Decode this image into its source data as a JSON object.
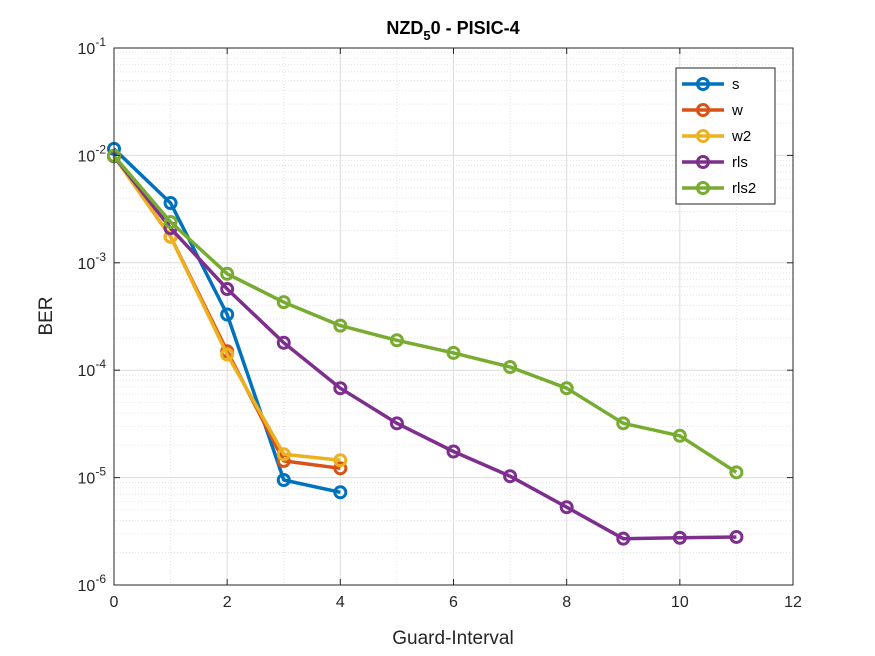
{
  "chart_data": {
    "type": "line",
    "title": "NZD",
    "title_subscript": "5",
    "title_suffix": "0 - PISIC-4",
    "xlabel": "Guard-Interval",
    "ylabel": "BER",
    "xlim": [
      0,
      12
    ],
    "ylim": [
      1e-06,
      0.1
    ],
    "yscale": "log",
    "xticks": [
      0,
      2,
      4,
      6,
      8,
      10,
      12
    ],
    "yticks": [
      {
        "value": 1e-06,
        "base": "10",
        "exp": "-6"
      },
      {
        "value": 1e-05,
        "base": "10",
        "exp": "-5"
      },
      {
        "value": 0.0001,
        "base": "10",
        "exp": "-4"
      },
      {
        "value": 0.001,
        "base": "10",
        "exp": "-3"
      },
      {
        "value": 0.01,
        "base": "10",
        "exp": "-2"
      },
      {
        "value": 0.1,
        "base": "10",
        "exp": "-1"
      }
    ],
    "grid": true,
    "minor_grid": true,
    "legend_position": "top-right",
    "series": [
      {
        "name": "s",
        "color": "#0072BD",
        "x": [
          0,
          1,
          2,
          3,
          4
        ],
        "y": [
          0.0115,
          0.0036,
          0.00033,
          9.5e-06,
          7.3e-06
        ]
      },
      {
        "name": "w",
        "color": "#D95319",
        "x": [
          0,
          1,
          2,
          3,
          4
        ],
        "y": [
          0.0099,
          0.00175,
          0.00015,
          1.43e-05,
          1.22e-05
        ]
      },
      {
        "name": "w2",
        "color": "#EDB120",
        "x": [
          0,
          1,
          2,
          3,
          4
        ],
        "y": [
          0.0098,
          0.00175,
          0.00014,
          1.65e-05,
          1.45e-05
        ]
      },
      {
        "name": "rls",
        "color": "#7E2F8E",
        "x": [
          0,
          1,
          2,
          3,
          4,
          5,
          6,
          7,
          8,
          9,
          10,
          11
        ],
        "y": [
          0.0098,
          0.0021,
          0.00057,
          0.00018,
          6.8e-05,
          3.2e-05,
          1.75e-05,
          1.03e-05,
          5.3e-06,
          2.7e-06,
          2.75e-06,
          2.8e-06
        ]
      },
      {
        "name": "rls2",
        "color": "#77AC30",
        "x": [
          0,
          1,
          2,
          3,
          4,
          5,
          6,
          7,
          8,
          9,
          10,
          11
        ],
        "y": [
          0.0099,
          0.0024,
          0.00079,
          0.00043,
          0.00026,
          0.00019,
          0.000145,
          0.000107,
          6.8e-05,
          3.2e-05,
          2.45e-05,
          1.12e-05
        ]
      }
    ]
  }
}
